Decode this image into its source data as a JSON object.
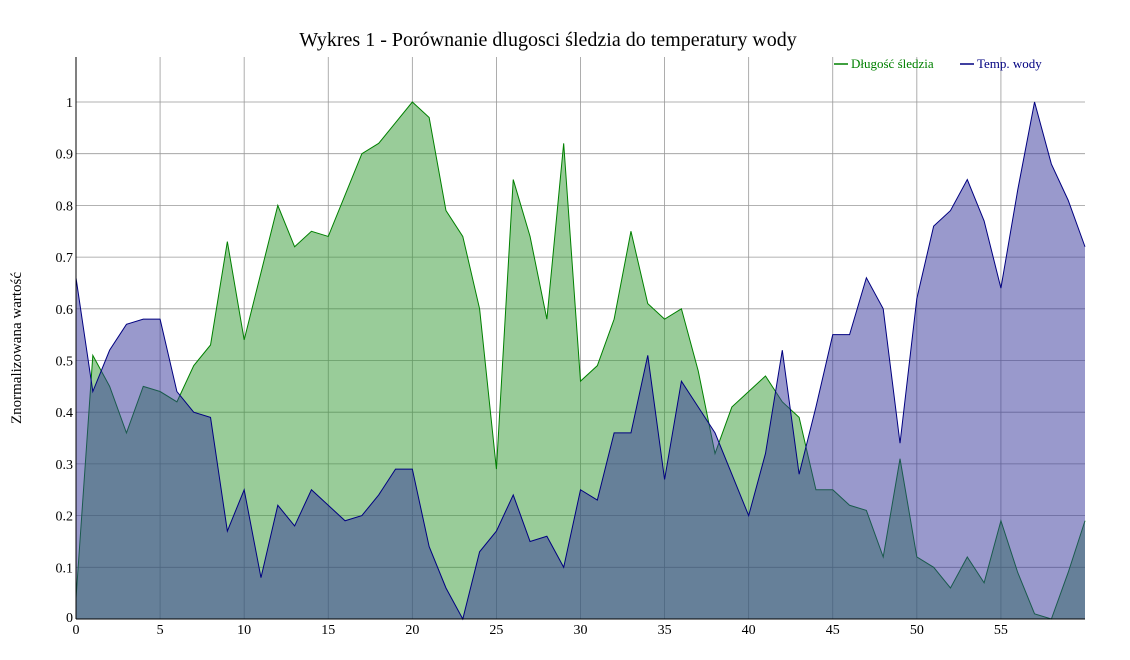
{
  "chart_data": {
    "type": "area",
    "title": "Wykres 1 - Porównanie dlugosci śledzia do temperatury wody",
    "xlabel": "",
    "ylabel": "Znormalizowana wartość",
    "xlim": [
      0,
      60
    ],
    "ylim": [
      0,
      1
    ],
    "x_ticks": [
      "0",
      "5",
      "10",
      "15",
      "20",
      "25",
      "30",
      "35",
      "40",
      "45",
      "50",
      "55"
    ],
    "y_ticks": [
      "0",
      "0.1",
      "0.2",
      "0.3",
      "0.4",
      "0.5",
      "0.6",
      "0.7",
      "0.8",
      "0.9",
      "1"
    ],
    "grid": true,
    "legend_position": "top-right",
    "x": [
      0,
      1,
      2,
      3,
      4,
      5,
      6,
      7,
      8,
      9,
      10,
      11,
      12,
      13,
      14,
      15,
      16,
      17,
      18,
      19,
      20,
      21,
      22,
      23,
      24,
      25,
      26,
      27,
      28,
      29,
      30,
      31,
      32,
      33,
      34,
      35,
      36,
      37,
      38,
      39,
      40,
      41,
      42,
      43,
      44,
      45,
      46,
      47,
      48,
      49,
      50,
      51,
      52,
      53,
      54,
      55,
      56,
      57,
      58,
      59,
      60
    ],
    "series": [
      {
        "name": "Długość śledzia",
        "color": "#008000",
        "fill": "#99cc99",
        "values": [
          0.04,
          0.51,
          0.45,
          0.36,
          0.45,
          0.44,
          0.42,
          0.49,
          0.53,
          0.73,
          0.54,
          0.67,
          0.8,
          0.72,
          0.75,
          0.74,
          0.82,
          0.9,
          0.92,
          0.96,
          1.0,
          0.97,
          0.79,
          0.74,
          0.6,
          0.29,
          0.85,
          0.74,
          0.58,
          0.92,
          0.46,
          0.49,
          0.58,
          0.75,
          0.61,
          0.58,
          0.6,
          0.48,
          0.32,
          0.41,
          0.44,
          0.47,
          0.42,
          0.39,
          0.25,
          0.25,
          0.22,
          0.21,
          0.12,
          0.31,
          0.12,
          0.1,
          0.06,
          0.12,
          0.07,
          0.19,
          0.09,
          0.01,
          0.0,
          0.09,
          0.19
        ]
      },
      {
        "name": "Temp. wody",
        "color": "#000080",
        "fill": "#9999cc",
        "values": [
          0.66,
          0.44,
          0.52,
          0.57,
          0.58,
          0.58,
          0.44,
          0.4,
          0.39,
          0.17,
          0.25,
          0.08,
          0.22,
          0.18,
          0.25,
          0.22,
          0.19,
          0.2,
          0.24,
          0.29,
          0.29,
          0.14,
          0.06,
          0.0,
          0.13,
          0.17,
          0.24,
          0.15,
          0.16,
          0.1,
          0.25,
          0.23,
          0.36,
          0.36,
          0.51,
          0.27,
          0.46,
          0.41,
          0.36,
          0.28,
          0.2,
          0.32,
          0.52,
          0.28,
          0.41,
          0.55,
          0.55,
          0.66,
          0.6,
          0.34,
          0.62,
          0.76,
          0.79,
          0.85,
          0.77,
          0.64,
          0.83,
          1.0,
          0.88,
          0.81,
          0.72
        ]
      }
    ]
  }
}
